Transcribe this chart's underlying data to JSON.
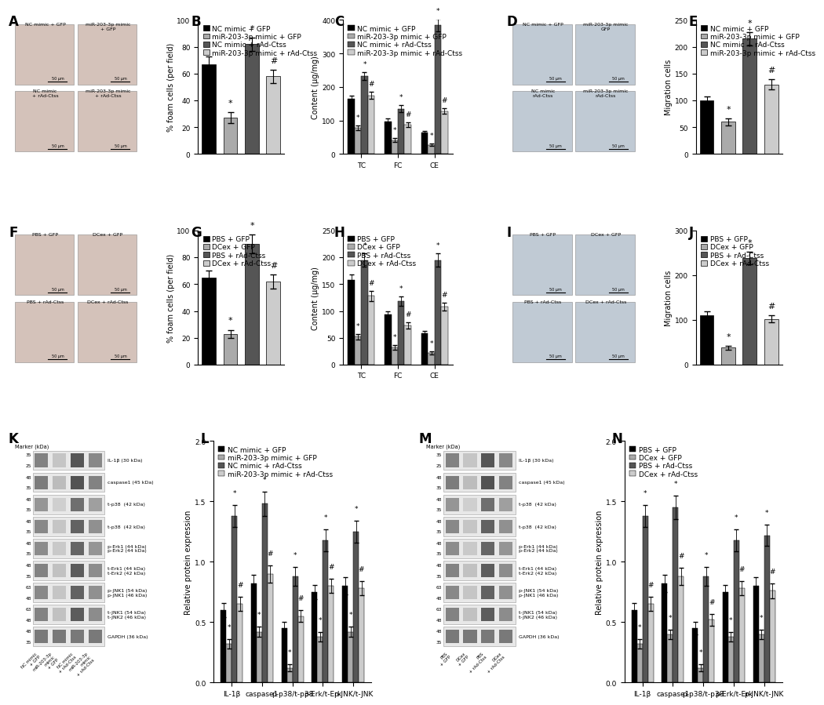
{
  "panel_B": {
    "ylabel": "% foam cells (per field)",
    "ylim": [
      0,
      100
    ],
    "yticks": [
      0,
      20,
      40,
      60,
      80,
      100
    ],
    "values": [
      67,
      27,
      82,
      58
    ],
    "errors": [
      6,
      4,
      5,
      5
    ],
    "colors": [
      "#000000",
      "#aaaaaa",
      "#555555",
      "#cccccc"
    ],
    "sig_above": [
      "",
      "*",
      "*",
      "#"
    ],
    "legend": [
      "NC mimic + GFP",
      "miR-203-3p mimic + GFP",
      "NC mimic + rAd-Ctss",
      "miR-203-3p mimic + rAd-Ctss"
    ]
  },
  "panel_C": {
    "ylabel": "Content (μg/mg)",
    "ylim": [
      0,
      400
    ],
    "yticks": [
      0,
      100,
      200,
      300,
      400
    ],
    "x_groups": [
      "TC",
      "FC",
      "CE"
    ],
    "values": {
      "TC": [
        165,
        78,
        232,
        175
      ],
      "FC": [
        98,
        42,
        135,
        88
      ],
      "CE": [
        65,
        28,
        385,
        128
      ]
    },
    "errors": {
      "TC": [
        10,
        7,
        12,
        10
      ],
      "FC": [
        8,
        5,
        10,
        7
      ],
      "CE": [
        5,
        3,
        18,
        8
      ]
    },
    "sig_above_idx": [
      1,
      2,
      3
    ],
    "colors": [
      "#000000",
      "#aaaaaa",
      "#555555",
      "#cccccc"
    ],
    "legend": [
      "NC mimic + GFP",
      "miR-203-3p mimic + GFP",
      "NC mimic + rAd-Ctss",
      "miR-203-3p mimic + rAd-Ctss"
    ]
  },
  "panel_E": {
    "ylabel": "Migration cells",
    "ylim": [
      0,
      250
    ],
    "yticks": [
      0,
      50,
      100,
      150,
      200,
      250
    ],
    "values": [
      100,
      60,
      215,
      130
    ],
    "errors": [
      8,
      6,
      12,
      9
    ],
    "colors": [
      "#000000",
      "#aaaaaa",
      "#555555",
      "#cccccc"
    ],
    "sig_above": [
      "",
      "*",
      "*",
      "#"
    ],
    "legend": [
      "NC mimic + GFP",
      "miR-203-3p mimic + GFP",
      "NC mimic + rAd-Ctss",
      "miR-203-3p mimic + rAd-Ctss"
    ]
  },
  "panel_G": {
    "ylabel": "% foam cells (per field)",
    "ylim": [
      0,
      100
    ],
    "yticks": [
      0,
      20,
      40,
      60,
      80,
      100
    ],
    "values": [
      65,
      23,
      90,
      62
    ],
    "errors": [
      5,
      3,
      7,
      5
    ],
    "colors": [
      "#000000",
      "#aaaaaa",
      "#555555",
      "#cccccc"
    ],
    "sig_above": [
      "",
      "*",
      "*",
      "#"
    ],
    "legend": [
      "PBS + GFP",
      "DCex + GFP",
      "PBS + rAd-Ctss",
      "DCex + rAd-Ctss"
    ]
  },
  "panel_H": {
    "ylabel": "Content (μg/mg)",
    "ylim": [
      0,
      250
    ],
    "yticks": [
      0,
      50,
      100,
      150,
      200,
      250
    ],
    "x_groups": [
      "TC",
      "FC",
      "CE"
    ],
    "values": {
      "TC": [
        158,
        52,
        195,
        128
      ],
      "FC": [
        93,
        32,
        118,
        73
      ],
      "CE": [
        58,
        22,
        195,
        108
      ]
    },
    "errors": {
      "TC": [
        10,
        5,
        12,
        9
      ],
      "FC": [
        7,
        4,
        9,
        6
      ],
      "CE": [
        5,
        3,
        12,
        7
      ]
    },
    "colors": [
      "#000000",
      "#aaaaaa",
      "#555555",
      "#cccccc"
    ],
    "legend": [
      "PBS + GFP",
      "DCex + GFP",
      "PBS + rAd-Ctss",
      "DCex + rAd-Ctss"
    ]
  },
  "panel_J": {
    "ylabel": "Migration cells",
    "ylim": [
      0,
      300
    ],
    "yticks": [
      0,
      100,
      200,
      300
    ],
    "values": [
      110,
      38,
      238,
      102
    ],
    "errors": [
      9,
      4,
      14,
      8
    ],
    "colors": [
      "#000000",
      "#aaaaaa",
      "#555555",
      "#cccccc"
    ],
    "sig_above": [
      "",
      "*",
      "*",
      "#"
    ],
    "legend": [
      "PBS + GFP",
      "DCex + GFP",
      "PBS + rAd-Ctss",
      "DCex + rAd-Ctss"
    ]
  },
  "panel_L": {
    "ylabel": "Relative protein expression",
    "ylim": [
      0.0,
      2.0
    ],
    "yticks": [
      0.0,
      0.5,
      1.0,
      1.5,
      2.0
    ],
    "x_groups": [
      "IL-1β",
      "caspase1",
      "p-p38/t-p38",
      "p-Erk/t-Erk",
      "p-JNK/t-JNK"
    ],
    "x_labels_rotated": [
      "IL-1β",
      "caspase1",
      "p-p38/t-p38",
      "p-Erk/t-Erk",
      "p-JNK/t-JNK"
    ],
    "values": {
      "IL-1β": [
        0.6,
        0.32,
        1.38,
        0.65
      ],
      "caspase1": [
        0.82,
        0.42,
        1.48,
        0.9
      ],
      "p-p38/t-p38": [
        0.45,
        0.12,
        0.88,
        0.55
      ],
      "p-Erk/t-Erk": [
        0.75,
        0.38,
        1.18,
        0.8
      ],
      "p-JNK/t-JNK": [
        0.8,
        0.42,
        1.25,
        0.78
      ]
    },
    "errors": {
      "IL-1β": [
        0.06,
        0.04,
        0.09,
        0.06
      ],
      "caspase1": [
        0.07,
        0.04,
        0.1,
        0.07
      ],
      "p-p38/t-p38": [
        0.05,
        0.03,
        0.08,
        0.05
      ],
      "p-Erk/t-Erk": [
        0.06,
        0.04,
        0.09,
        0.06
      ],
      "p-JNK/t-JNK": [
        0.07,
        0.04,
        0.09,
        0.06
      ]
    },
    "colors": [
      "#000000",
      "#aaaaaa",
      "#555555",
      "#cccccc"
    ],
    "legend": [
      "NC mimic + GFP",
      "miR-203-3p mimic + GFP",
      "NC mimic + rAd-Ctss",
      "miR-203-3p mimic + rAd-Ctss"
    ]
  },
  "panel_N": {
    "ylabel": "Relative protein expression",
    "ylim": [
      0.0,
      2.0
    ],
    "yticks": [
      0.0,
      0.5,
      1.0,
      1.5,
      2.0
    ],
    "x_groups": [
      "IL-1β",
      "caspase1",
      "p-p38/t-p38",
      "p-Erk/t-Erk",
      "p-JNK/t-JNK"
    ],
    "values": {
      "IL-1β": [
        0.6,
        0.32,
        1.38,
        0.65
      ],
      "caspase1": [
        0.82,
        0.4,
        1.45,
        0.88
      ],
      "p-p38/t-p38": [
        0.45,
        0.12,
        0.88,
        0.52
      ],
      "p-Erk/t-Erk": [
        0.75,
        0.38,
        1.18,
        0.78
      ],
      "p-JNK/t-JNK": [
        0.8,
        0.4,
        1.22,
        0.76
      ]
    },
    "errors": {
      "IL-1β": [
        0.06,
        0.04,
        0.09,
        0.06
      ],
      "caspase1": [
        0.07,
        0.04,
        0.1,
        0.07
      ],
      "p-p38/t-p38": [
        0.05,
        0.03,
        0.08,
        0.05
      ],
      "p-Erk/t-Erk": [
        0.06,
        0.04,
        0.09,
        0.06
      ],
      "p-JNK/t-JNK": [
        0.07,
        0.04,
        0.09,
        0.06
      ]
    },
    "colors": [
      "#000000",
      "#aaaaaa",
      "#555555",
      "#cccccc"
    ],
    "legend": [
      "PBS + GFP",
      "DCex + GFP",
      "PBS + rAd-Ctss",
      "DCex + rAd-Ctss"
    ]
  },
  "wb_rows": [
    {
      "label": "IL-1β (30 kDa)",
      "markers": [
        "35",
        "25"
      ],
      "intensities": [
        0.65,
        0.3,
        0.88,
        0.62
      ]
    },
    {
      "label": "caspase1 (45 kDa)",
      "markers": [
        "48",
        "35"
      ],
      "intensities": [
        0.68,
        0.35,
        0.9,
        0.65
      ]
    },
    {
      "label": "t-p38  (42 kDa)",
      "markers": [
        "48",
        "35"
      ],
      "intensities": [
        0.55,
        0.25,
        0.75,
        0.5
      ]
    },
    {
      "label": "t-p38  (42 kDa)",
      "markers": [
        "48",
        "35"
      ],
      "intensities": [
        0.62,
        0.3,
        0.82,
        0.58
      ]
    },
    {
      "label": "p-Erk1 (44 kDa)\np-Erk2 (44 kDa)",
      "markers": [
        "48",
        "35"
      ],
      "intensities": [
        0.6,
        0.28,
        0.8,
        0.55
      ]
    },
    {
      "label": "t-Erk1 (44 kDa)\nt-Erk2 (42 kDa)",
      "markers": [
        "48",
        "35"
      ],
      "intensities": [
        0.65,
        0.32,
        0.85,
        0.6
      ]
    },
    {
      "label": "p-JNK1 (54 kDa)\np-JNK1 (46 kDa)",
      "markers": [
        "63",
        "48"
      ],
      "intensities": [
        0.62,
        0.3,
        0.82,
        0.58
      ]
    },
    {
      "label": "t-JNK1 (54 kDa)\nt-JNK2 (46 kDa)",
      "markers": [
        "63",
        "48"
      ],
      "intensities": [
        0.65,
        0.32,
        0.85,
        0.6
      ]
    },
    {
      "label": "GAPDH (36 kDa)",
      "markers": [
        "48",
        "35"
      ],
      "intensities": [
        0.7,
        0.7,
        0.7,
        0.7
      ]
    }
  ],
  "wb_xlabels_K": [
    "NC mimic\n+ GFP",
    "miR-203-3p\nmimic\n+ GFP",
    "NC mimic\n+ rAd-Ctss",
    "miR-203-3p\nmimic\n+ rAd-Ctss"
  ],
  "wb_xlabels_M": [
    "PBS\n+ GFP",
    "DCex\n+ GFP",
    "PBS\n+ rAd-Ctss",
    "DCex\n+ rAd-Ctss"
  ],
  "image_bg_color": "#ffffff",
  "panel_label_fontsize": 12,
  "axis_label_fontsize": 7,
  "tick_fontsize": 6.5,
  "legend_fontsize": 6.5,
  "bar_width": 0.18
}
